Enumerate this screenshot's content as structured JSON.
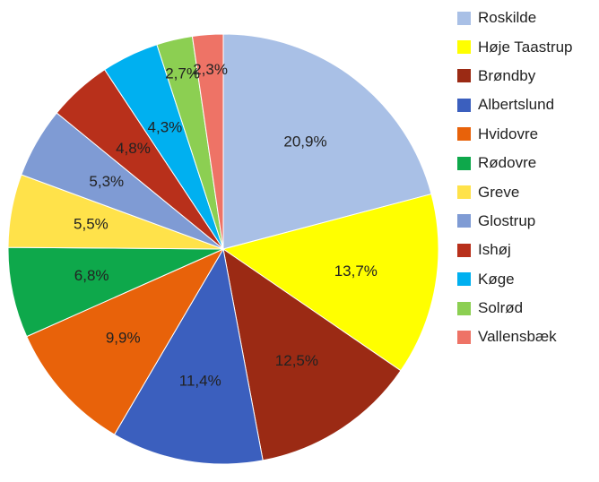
{
  "chart_data": {
    "type": "pie",
    "title": "",
    "categories": [
      "Roskilde",
      "Høje Taastrup",
      "Brøndby",
      "Albertslund",
      "Hvidovre",
      "Rødovre",
      "Greve",
      "Glostrup",
      "Ishøj",
      "Køge",
      "Solrød",
      "Vallensbæk"
    ],
    "values": [
      20.9,
      13.7,
      12.5,
      11.4,
      9.9,
      6.8,
      5.5,
      5.3,
      4.8,
      4.3,
      2.7,
      2.3
    ],
    "value_labels": [
      "20,9%",
      "13,7%",
      "12,5%",
      "11,4%",
      "9,9%",
      "6,8%",
      "5,5%",
      "5,3%",
      "4,8%",
      "4,3%",
      "2,7%",
      "2,3%"
    ],
    "colors": [
      "#a9c0e6",
      "#ffff00",
      "#9b2a14",
      "#3b5fbe",
      "#e8620a",
      "#0ea84b",
      "#ffe24a",
      "#7f9bd4",
      "#b8301b",
      "#00b0f0",
      "#8ccf52",
      "#ee7366"
    ],
    "legend_position": "right",
    "start_angle_deg": 0,
    "direction": "clockwise"
  }
}
